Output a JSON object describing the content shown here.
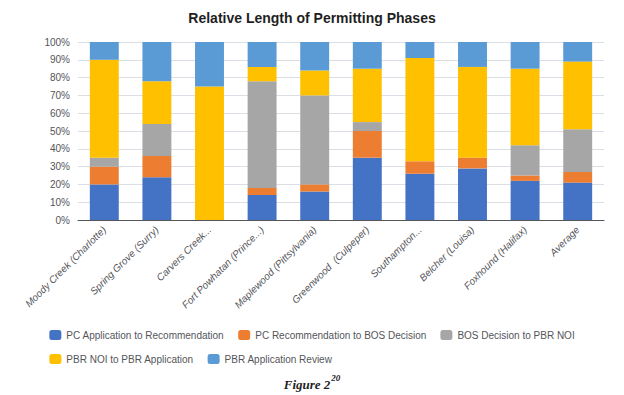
{
  "chart_data": {
    "type": "bar",
    "title": "Relative Length of Permitting Phases",
    "categories": [
      "Moody Creek (Charlotte)",
      "Spring Grove (Surry)",
      "Carvers Creek...",
      "Fort Powhatan (Prince...)",
      "Maplewood (Pittsylvania)",
      "Greenwood  (Culpeper)",
      "Southampton...",
      "Belcher (Louisa)",
      "Foxhound (Halifax)",
      "Average"
    ],
    "series": [
      {
        "name": "PC Application to Recommendation",
        "color": "#4472c4",
        "values": [
          20,
          24,
          0,
          14,
          16,
          35,
          26,
          29,
          22,
          21
        ]
      },
      {
        "name": "PC Recommendation to BOS Decision",
        "color": "#ed7d31",
        "values": [
          10,
          12,
          0,
          4,
          4,
          15,
          7,
          6,
          3,
          6
        ]
      },
      {
        "name": "BOS Decision to PBR NOI",
        "color": "#a6a6a6",
        "values": [
          5,
          18,
          0,
          60,
          50,
          5,
          0,
          0,
          17,
          24
        ]
      },
      {
        "name": "PBR NOI to PBR Application",
        "color": "#ffc000",
        "values": [
          55,
          24,
          75,
          8,
          14,
          30,
          58,
          51,
          43,
          38
        ]
      },
      {
        "name": "PBR Application Review",
        "color": "#5b9bd5",
        "values": [
          10,
          22,
          25,
          14,
          16,
          15,
          9,
          14,
          15,
          11
        ]
      }
    ],
    "stacked": true,
    "ylim": [
      0,
      100
    ],
    "yticks": [
      {
        "value": 0,
        "label": "0%"
      },
      {
        "value": 10,
        "label": "10%"
      },
      {
        "value": 20,
        "label": "20%"
      },
      {
        "value": 30,
        "label": "30%"
      },
      {
        "value": 40,
        "label": "40%"
      },
      {
        "value": 50,
        "label": "50%"
      },
      {
        "value": 60,
        "label": "60%"
      },
      {
        "value": 70,
        "label": "70%"
      },
      {
        "value": 80,
        "label": "80%"
      },
      {
        "value": 90,
        "label": "90%"
      },
      {
        "value": 100,
        "label": "100%"
      }
    ],
    "grid": true,
    "legend": "bottom",
    "annotations": [
      "Figure 2",
      "20"
    ]
  }
}
